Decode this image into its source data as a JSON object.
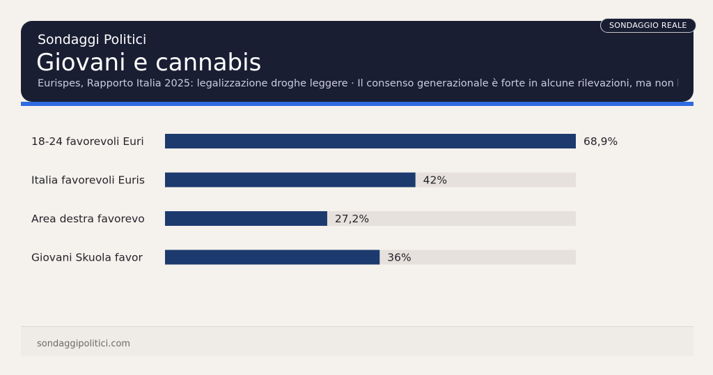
{
  "header": {
    "kicker": "Sondaggi Politici",
    "title": "Giovani e cannabis",
    "subtitle": "Eurispes, Rapporto Italia 2025: legalizzazione droghe leggere · Il consenso generazionale è forte in alcune rilevazioni, ma non b",
    "badge": "SONDAGGIO REALE"
  },
  "chart_data": {
    "type": "bar",
    "orientation": "horizontal",
    "categories": [
      "18-24 favorevoli Euri",
      "Italia favorevoli Euris",
      "Area destra favorevo",
      "Giovani Skuola favor"
    ],
    "values": [
      68.9,
      42,
      27.2,
      36
    ],
    "value_labels": [
      "68,9%",
      "42%",
      "27,2%",
      "36%"
    ],
    "xlim": [
      0,
      68.9
    ],
    "bar_color": "#1c3a6e",
    "track_color": "#e6e1dc"
  },
  "footer": {
    "site": "sondaggipolitici.com"
  },
  "colors": {
    "header_bg": "#1a1e33",
    "accent": "#2f6ae0",
    "page_bg": "#f5f1ec"
  }
}
